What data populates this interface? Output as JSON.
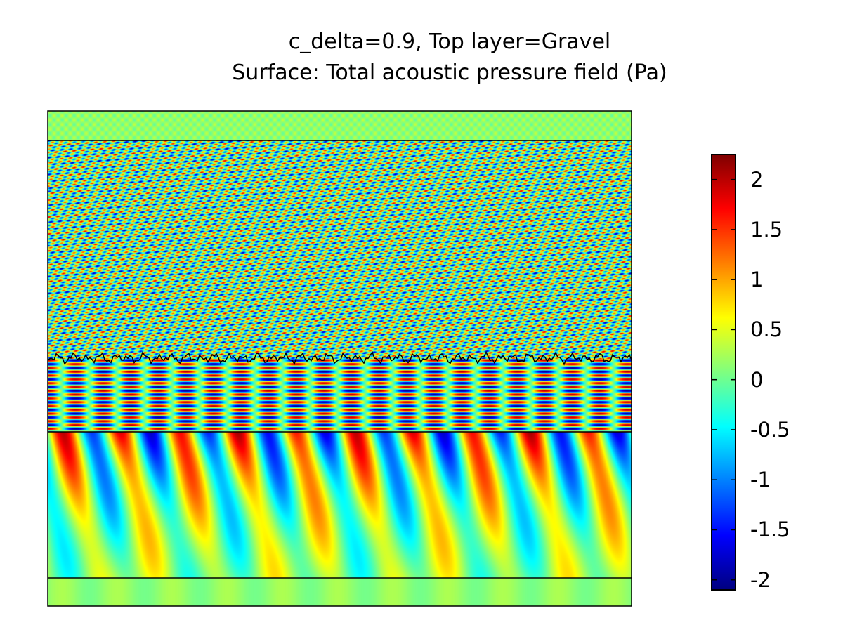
{
  "chart_data": {
    "type": "heatmap",
    "title": "c_delta=0.9, Top layer=Gravel",
    "subtitle": "Surface: Total acoustic pressure field (Pa)",
    "quantity": "Total acoustic pressure field",
    "unit": "Pa",
    "colorbar": {
      "range": [
        -2.1,
        2.25
      ],
      "ticks": [
        2,
        1.5,
        1,
        0.5,
        0,
        -0.5,
        -1,
        -1.5,
        -2
      ],
      "tick_labels": [
        "2",
        "1.5",
        "1",
        "0.5",
        "0",
        "-0.5",
        "-1",
        "-1.5",
        "-2"
      ],
      "colormap": "jet",
      "placement": "right"
    },
    "axes_visible": false,
    "grid": false,
    "layers_top_to_bottom": [
      "upper strip (near zero pressure, faint ripples)",
      "water column with dense oblique interference pattern (about ±2 Pa)",
      "rough interface line inside the column",
      "sediment layer with long tilted wave lobes (about ±1.5 Pa)",
      "bottom strip (near zero pressure)"
    ]
  },
  "colors": {
    "jet": [
      "#00007f",
      "#0000ff",
      "#007fff",
      "#00ffff",
      "#7fff7f",
      "#ffff00",
      "#ff7f00",
      "#ff0000",
      "#7f0000"
    ],
    "boundary": "#000000"
  }
}
